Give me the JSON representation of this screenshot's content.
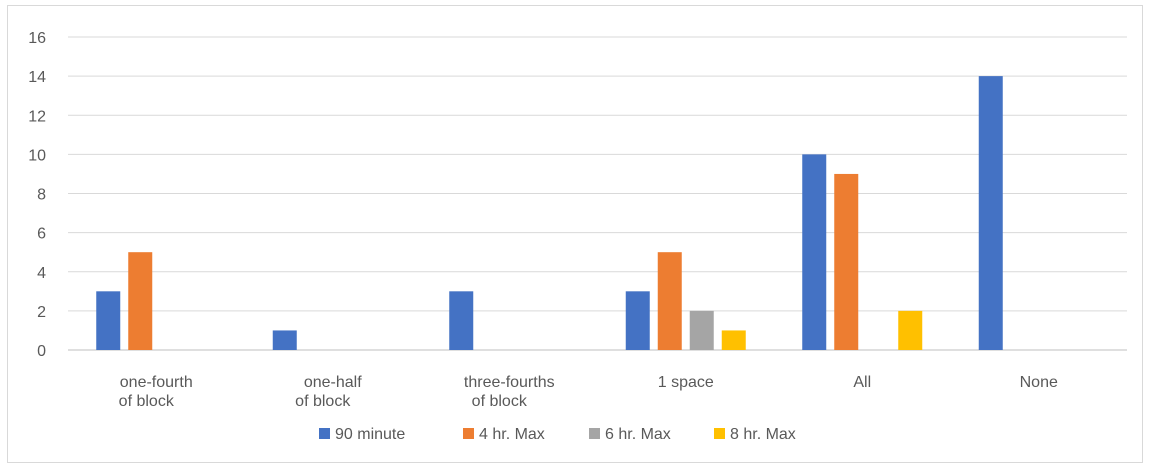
{
  "chart_data": {
    "type": "bar",
    "title": "",
    "xlabel": "",
    "ylabel": "",
    "categories": [
      [
        "one-fourth",
        "of block"
      ],
      [
        "one-half",
        "of block"
      ],
      [
        "three-fourths",
        "of block"
      ],
      [
        "1 space"
      ],
      [
        "All"
      ],
      [
        "None"
      ]
    ],
    "ylim": [
      0,
      16
    ],
    "yticks": [
      "0",
      "2",
      "4",
      "6",
      "8",
      "10",
      "12",
      "14",
      "16"
    ],
    "grid": true,
    "legend_position": "bottom",
    "series": [
      {
        "name": "90 minute",
        "color": "#4472C4",
        "values": [
          3,
          1,
          3,
          3,
          10,
          14
        ]
      },
      {
        "name": "4 hr. Max",
        "color": "#ED7D31",
        "values": [
          5,
          0,
          0,
          5,
          9,
          0
        ]
      },
      {
        "name": "6 hr. Max",
        "color": "#A5A5A5",
        "values": [
          0,
          0,
          0,
          2,
          0,
          0
        ]
      },
      {
        "name": "8 hr. Max",
        "color": "#FFC000",
        "values": [
          0,
          0,
          0,
          1,
          2,
          0
        ]
      }
    ]
  }
}
